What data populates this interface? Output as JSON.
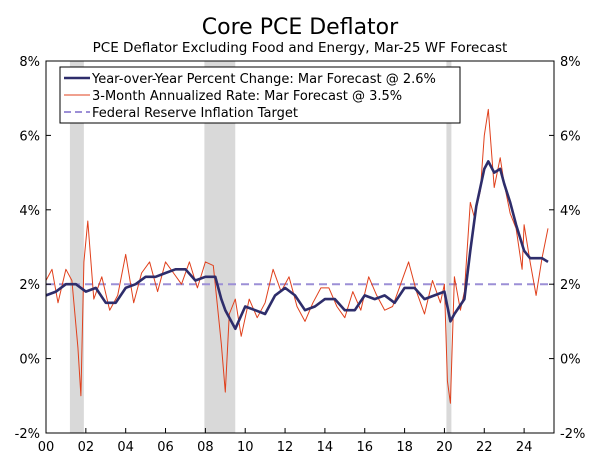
{
  "chart_data": {
    "type": "line",
    "title": "Core PCE Deflator",
    "subtitle": "PCE Deflator Excluding Food and Energy, Mar-25 WF Forecast",
    "ylim": [
      -2,
      8
    ],
    "xlim": [
      2000,
      2025.5
    ],
    "y_ticks": [
      "8%",
      "6%",
      "4%",
      "2%",
      "0%",
      "-2%"
    ],
    "y_tick_values": [
      8,
      6,
      4,
      2,
      0,
      -2
    ],
    "x_ticks": [
      "00",
      "02",
      "04",
      "06",
      "08",
      "10",
      "12",
      "14",
      "16",
      "18",
      "20",
      "22",
      "24"
    ],
    "x_tick_values": [
      2000,
      2002,
      2004,
      2006,
      2008,
      2010,
      2012,
      2014,
      2016,
      2018,
      2020,
      2022,
      2024
    ],
    "legend_position": "top-left",
    "grid": false,
    "recession_shading": [
      {
        "start": 2001.2,
        "end": 2001.9
      },
      {
        "start": 2007.95,
        "end": 2009.5
      },
      {
        "start": 2020.1,
        "end": 2020.35
      }
    ],
    "colors": {
      "yoy": "#2e2d6b",
      "three_month": "#e0401c",
      "target": "#9c8fd6",
      "recession": "#d9d9d9"
    },
    "series": [
      {
        "name": "Year-over-Year Percent Change: Mar Forecast @ 2.6%",
        "style": "thick",
        "x": [
          2000.0,
          2000.5,
          2001.0,
          2001.5,
          2002.0,
          2002.5,
          2003.0,
          2003.5,
          2004.0,
          2004.5,
          2005.0,
          2005.5,
          2006.0,
          2006.5,
          2007.0,
          2007.5,
          2008.0,
          2008.5,
          2008.8,
          2009.0,
          2009.5,
          2010.0,
          2010.5,
          2011.0,
          2011.5,
          2012.0,
          2012.5,
          2013.0,
          2013.5,
          2014.0,
          2014.5,
          2015.0,
          2015.5,
          2016.0,
          2016.5,
          2017.0,
          2017.5,
          2018.0,
          2018.5,
          2019.0,
          2019.5,
          2020.0,
          2020.3,
          2020.5,
          2021.0,
          2021.3,
          2021.6,
          2022.0,
          2022.2,
          2022.5,
          2022.8,
          2023.0,
          2023.3,
          2023.6,
          2024.0,
          2024.3,
          2024.6,
          2024.9,
          2025.2
        ],
        "values": [
          1.7,
          1.8,
          2.0,
          2.0,
          1.8,
          1.9,
          1.5,
          1.5,
          1.9,
          2.0,
          2.2,
          2.2,
          2.3,
          2.4,
          2.4,
          2.1,
          2.2,
          2.2,
          1.6,
          1.3,
          0.8,
          1.4,
          1.3,
          1.2,
          1.7,
          1.9,
          1.7,
          1.3,
          1.4,
          1.6,
          1.6,
          1.3,
          1.3,
          1.7,
          1.6,
          1.7,
          1.5,
          1.9,
          1.9,
          1.6,
          1.7,
          1.8,
          1.0,
          1.2,
          1.6,
          2.9,
          4.1,
          5.1,
          5.3,
          5.0,
          5.1,
          4.7,
          4.2,
          3.6,
          2.9,
          2.7,
          2.7,
          2.7,
          2.6
        ]
      },
      {
        "name": "3-Month Annualized Rate: Mar Forecast @ 3.5%",
        "style": "thin",
        "x": [
          2000.0,
          2000.3,
          2000.6,
          2001.0,
          2001.3,
          2001.6,
          2001.75,
          2001.9,
          2002.1,
          2002.4,
          2002.8,
          2003.2,
          2003.6,
          2004.0,
          2004.4,
          2004.8,
          2005.2,
          2005.6,
          2006.0,
          2006.4,
          2006.8,
          2007.2,
          2007.6,
          2008.0,
          2008.4,
          2008.8,
          2009.0,
          2009.2,
          2009.5,
          2009.8,
          2010.2,
          2010.6,
          2011.0,
          2011.4,
          2011.8,
          2012.2,
          2012.6,
          2013.0,
          2013.4,
          2013.8,
          2014.2,
          2014.6,
          2015.0,
          2015.4,
          2015.8,
          2016.2,
          2016.6,
          2017.0,
          2017.4,
          2017.8,
          2018.2,
          2018.6,
          2019.0,
          2019.4,
          2019.8,
          2020.0,
          2020.15,
          2020.3,
          2020.5,
          2020.8,
          2021.0,
          2021.3,
          2021.5,
          2021.8,
          2022.0,
          2022.2,
          2022.5,
          2022.8,
          2023.0,
          2023.3,
          2023.6,
          2023.9,
          2024.0,
          2024.3,
          2024.6,
          2024.9,
          2025.2
        ],
        "values": [
          2.1,
          2.4,
          1.5,
          2.4,
          2.1,
          0.3,
          -1.0,
          2.6,
          3.7,
          1.6,
          2.2,
          1.3,
          1.7,
          2.8,
          1.5,
          2.3,
          2.6,
          1.8,
          2.6,
          2.3,
          2.0,
          2.6,
          1.9,
          2.6,
          2.5,
          0.4,
          -0.9,
          1.2,
          1.6,
          0.6,
          1.6,
          1.1,
          1.5,
          2.4,
          1.8,
          2.2,
          1.4,
          1.0,
          1.5,
          1.9,
          1.9,
          1.4,
          1.1,
          1.8,
          1.3,
          2.2,
          1.7,
          1.3,
          1.4,
          2.0,
          2.6,
          1.8,
          1.2,
          2.1,
          1.5,
          2.0,
          -0.6,
          -1.2,
          2.2,
          1.3,
          1.8,
          4.2,
          3.8,
          4.5,
          6.0,
          6.7,
          4.6,
          5.4,
          4.7,
          3.9,
          3.5,
          2.4,
          3.6,
          2.6,
          1.7,
          2.7,
          3.5
        ]
      },
      {
        "name": "Federal Reserve Inflation Target",
        "style": "dashed",
        "x": [
          2000.0,
          2025.5
        ],
        "values": [
          2.0,
          2.0
        ]
      }
    ]
  }
}
